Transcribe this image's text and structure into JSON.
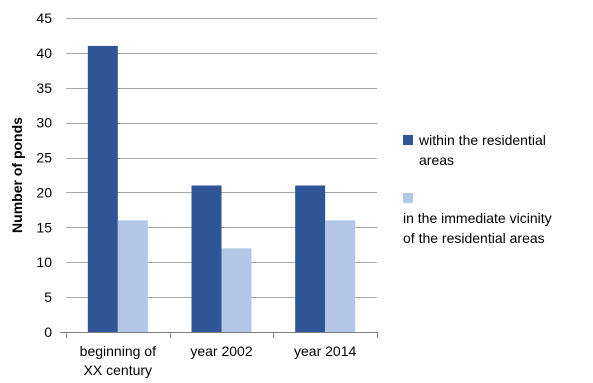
{
  "chart_data": {
    "type": "bar",
    "title": "",
    "xlabel": "",
    "ylabel": "Number of ponds",
    "ylim": [
      0,
      45
    ],
    "yticks": [
      0,
      5,
      10,
      15,
      20,
      25,
      30,
      35,
      40,
      45
    ],
    "grid": true,
    "legend_position": "right",
    "categories": [
      [
        "beginning of",
        "XX century"
      ],
      [
        "year 2002"
      ],
      [
        "year 2014"
      ]
    ],
    "series": [
      {
        "name": "within the residential areas",
        "color": "#2f5597",
        "values": [
          41,
          21,
          21
        ]
      },
      {
        "name": "in the immediate vicinity of the residential areas",
        "color": "#b4c7e7",
        "values": [
          16,
          12,
          16
        ]
      }
    ]
  },
  "legend": {
    "items": [
      {
        "lines": [
          "within the residential",
          "areas"
        ]
      },
      {
        "lines": [
          "",
          "in the immediate vicinity",
          "of the residential areas"
        ]
      }
    ]
  }
}
